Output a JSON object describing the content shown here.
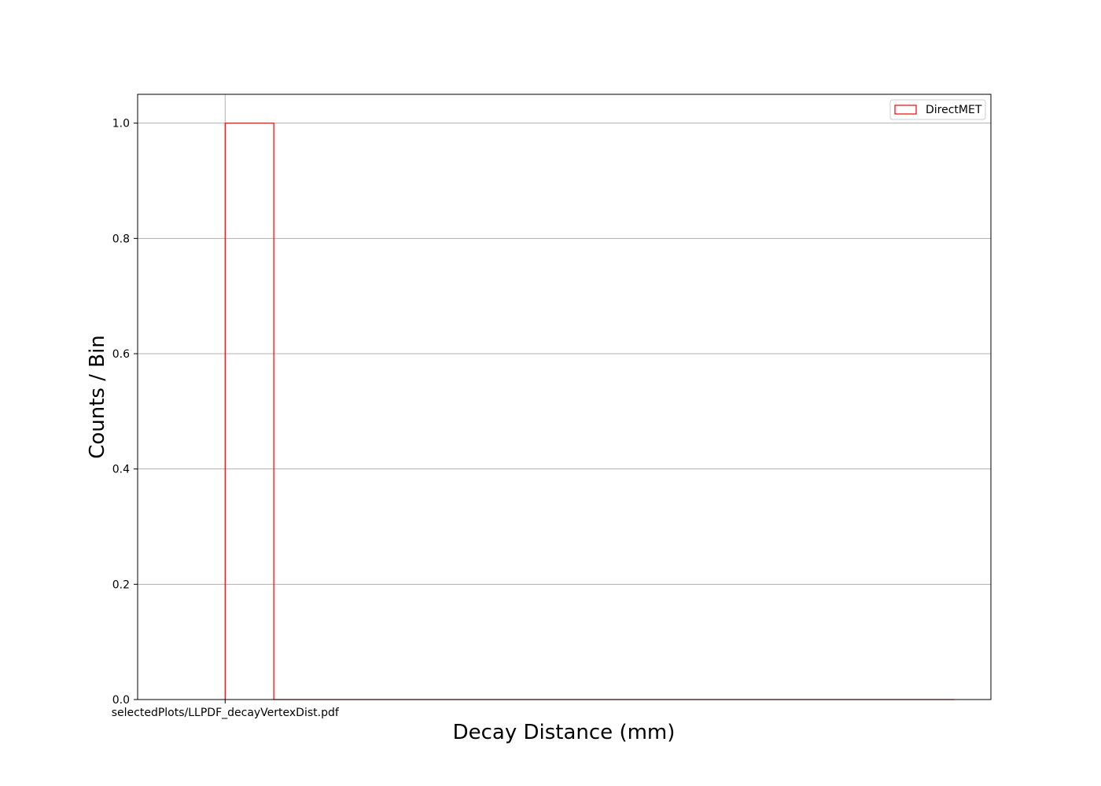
{
  "chart_data": {
    "type": "histogram",
    "xlabel": "Decay Distance (mm)",
    "ylabel": "Counts / Bin",
    "x_tick_labels": [
      "selectedPlots/LLPDF_decayVertexDist.pdf"
    ],
    "y_ticks": [
      0.0,
      0.2,
      0.4,
      0.6,
      0.8,
      1.0
    ],
    "y_tick_labels": [
      "0.0",
      "0.2",
      "0.4",
      "0.6",
      "0.8",
      "1.0"
    ],
    "ylim": [
      0,
      1.05
    ],
    "xlim": [
      -0.12,
      1.05
    ],
    "grid": true,
    "legend_position": "top-right",
    "series": [
      {
        "name": "DirectMET",
        "style": "step",
        "color": "#ff0000",
        "bins": [
          {
            "x0": 0.0,
            "x1": 0.0667,
            "value": 1.0
          },
          {
            "x0": 0.0667,
            "x1": 1.0,
            "value": 0.0
          }
        ]
      }
    ],
    "x_tick_positions": [
      0.0
    ]
  }
}
